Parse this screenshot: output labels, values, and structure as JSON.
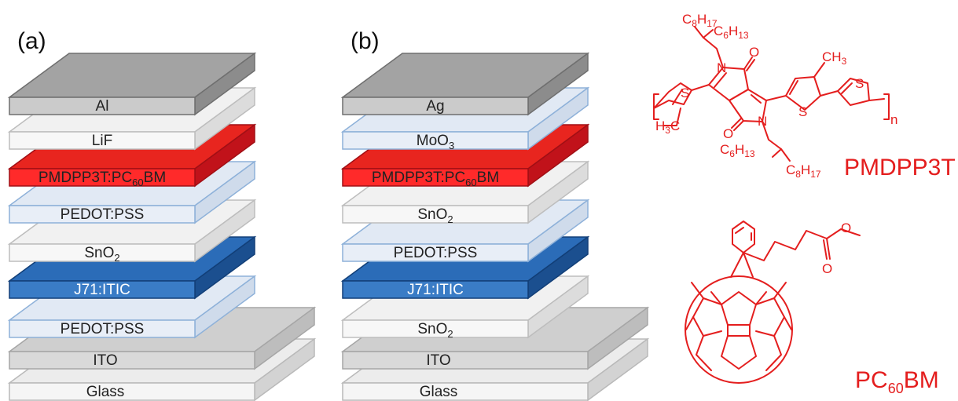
{
  "panels": [
    {
      "id": "a",
      "label": "(a)",
      "layers": [
        {
          "name": "Glass",
          "sub": "",
          "suffix": "",
          "type": "gray_light"
        },
        {
          "name": "ITO",
          "sub": "",
          "suffix": "",
          "type": "gray"
        },
        {
          "name": "PEDOT:PSS",
          "sub": "",
          "suffix": "",
          "type": "lightblue"
        },
        {
          "name": "J71:ITIC",
          "sub": "",
          "suffix": "",
          "type": "blue"
        },
        {
          "name": "SnO",
          "sub": "2",
          "suffix": "",
          "type": "white"
        },
        {
          "name": "PEDOT:PSS",
          "sub": "",
          "suffix": "",
          "type": "lightblue"
        },
        {
          "name": "PMDPP3T:PC",
          "sub": "60",
          "suffix": "BM",
          "type": "red"
        },
        {
          "name": "LiF",
          "sub": "",
          "suffix": "",
          "type": "white"
        },
        {
          "name": "Al",
          "sub": "",
          "suffix": "",
          "type": "metal"
        }
      ]
    },
    {
      "id": "b",
      "label": "(b)",
      "layers": [
        {
          "name": "Glass",
          "sub": "",
          "suffix": "",
          "type": "gray_light"
        },
        {
          "name": "ITO",
          "sub": "",
          "suffix": "",
          "type": "gray"
        },
        {
          "name": "SnO",
          "sub": "2",
          "suffix": "",
          "type": "white"
        },
        {
          "name": "J71:ITIC",
          "sub": "",
          "suffix": "",
          "type": "blue"
        },
        {
          "name": "PEDOT:PSS",
          "sub": "",
          "suffix": "",
          "type": "lightblue"
        },
        {
          "name": "SnO",
          "sub": "2",
          "suffix": "",
          "type": "white"
        },
        {
          "name": "PMDPP3T:PC",
          "sub": "60",
          "suffix": "BM",
          "type": "red"
        },
        {
          "name": "MoO",
          "sub": "3",
          "suffix": "",
          "type": "lightblue"
        },
        {
          "name": "Ag",
          "sub": "",
          "suffix": "",
          "type": "metal"
        }
      ]
    }
  ],
  "molecules": {
    "pmdpp3t": {
      "name": "PMDPP3T",
      "subs": {
        "c8h17_top": [
          "C",
          "8",
          "H",
          "17"
        ],
        "c6h13_top": [
          "C",
          "6",
          "H",
          "13"
        ],
        "c6h13_bot": [
          "C",
          "6",
          "H",
          "13"
        ],
        "c8h17_bot": [
          "C",
          "8",
          "H",
          "17"
        ],
        "ch3_right": [
          "CH",
          "3"
        ],
        "h3c_left": [
          "H",
          "3",
          "C"
        ]
      },
      "atoms": {
        "s": "S",
        "n": "N",
        "o": "O",
        "repeat": "n"
      }
    },
    "pcbm": {
      "name_main": "PC",
      "name_sub": "60",
      "name_suffix": "BM",
      "atoms": {
        "o": "O"
      }
    }
  },
  "colors": {
    "gray_light": {
      "top": "#ececec",
      "front": "#f5f5f5",
      "side": "#d3d3d3",
      "stroke": "#b9b9b9",
      "text": "#222222"
    },
    "gray": {
      "top": "#cfcfcf",
      "front": "#d9d9d9",
      "side": "#bdbdbd",
      "stroke": "#a6a6a6",
      "text": "#222222"
    },
    "white": {
      "top": "#f1f1f1",
      "front": "#f7f7f7",
      "side": "#dcdcdc",
      "stroke": "#bdbdbd",
      "text": "#222222"
    },
    "lightblue": {
      "top": "#e1e9f4",
      "front": "#e8eef7",
      "side": "#cfdbeb",
      "stroke": "#8eb1d9",
      "text": "#222222"
    },
    "blue": {
      "top": "#2b6cb8",
      "front": "#3a7cc6",
      "side": "#1b4f8f",
      "stroke": "#123f78",
      "text": "#ffffff"
    },
    "red": {
      "top": "#e8251f",
      "front": "#ff2a2a",
      "side": "#c1121a",
      "stroke": "#a10f15",
      "text": "#222222"
    },
    "metal": {
      "top": "#a3a3a3",
      "front": "#cbcbcb",
      "side": "#8c8c8c",
      "stroke": "#6f6f6f",
      "text": "#222222"
    },
    "chem": "#e41e1e"
  }
}
